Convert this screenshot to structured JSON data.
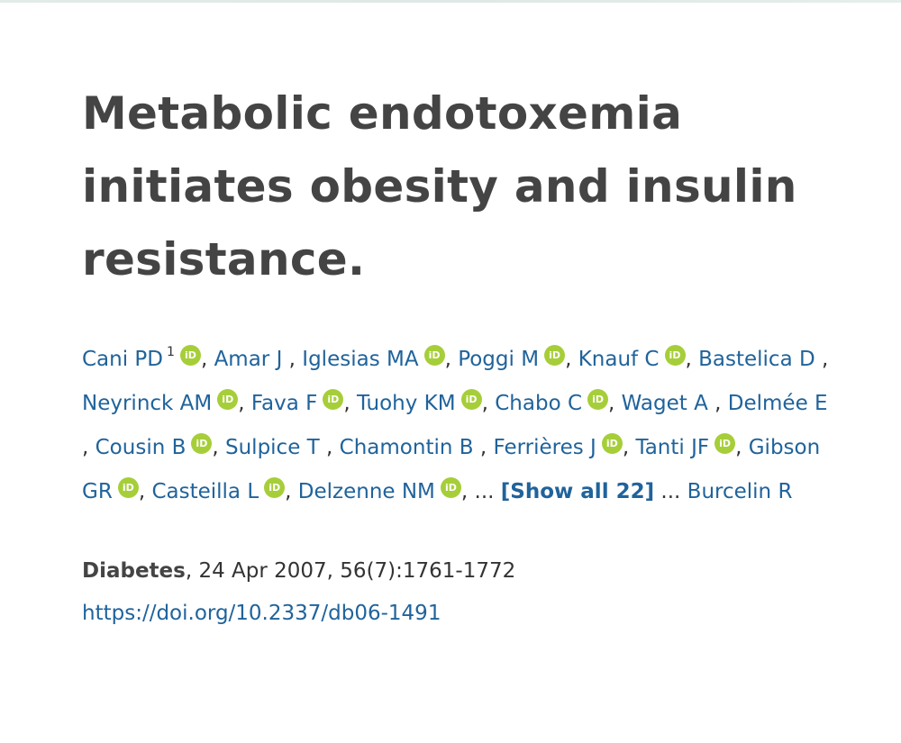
{
  "article": {
    "title": "Metabolic endotoxemia initiates obesity and insulin resistance.",
    "authors": [
      {
        "name": "Cani PD",
        "affiliation": "1",
        "orcid": true
      },
      {
        "name": "Amar J",
        "orcid": false
      },
      {
        "name": "Iglesias MA",
        "orcid": true
      },
      {
        "name": "Poggi M",
        "orcid": true
      },
      {
        "name": "Knauf C",
        "orcid": true
      },
      {
        "name": "Bastelica D",
        "orcid": false
      },
      {
        "name": "Neyrinck AM",
        "orcid": true
      },
      {
        "name": "Fava F",
        "orcid": true
      },
      {
        "name": "Tuohy KM",
        "orcid": true
      },
      {
        "name": "Chabo C",
        "orcid": true
      },
      {
        "name": "Waget A",
        "orcid": false
      },
      {
        "name": "Delmée E",
        "orcid": false
      },
      {
        "name": "Cousin B",
        "orcid": true
      },
      {
        "name": "Sulpice T",
        "orcid": false
      },
      {
        "name": "Chamontin B",
        "orcid": false
      },
      {
        "name": "Ferrières J",
        "orcid": true
      },
      {
        "name": "Tanti JF",
        "orcid": true
      },
      {
        "name": "Gibson GR",
        "orcid": true
      },
      {
        "name": "Casteilla L",
        "orcid": true
      },
      {
        "name": "Delzenne NM",
        "orcid": true
      }
    ],
    "ellipsis": "...",
    "show_all_label": "[Show all 22]",
    "last_author": "Burcelin R",
    "orcid_icon_text": "iD",
    "journal": "Diabetes",
    "citation_details": ", 24 Apr 2007, 56(7):1761-1772",
    "doi": "https://doi.org/10.2337/db06-1491"
  },
  "colors": {
    "link": "#20639b",
    "orcid": "#a6ce39",
    "title": "#444444",
    "text": "#333333"
  }
}
